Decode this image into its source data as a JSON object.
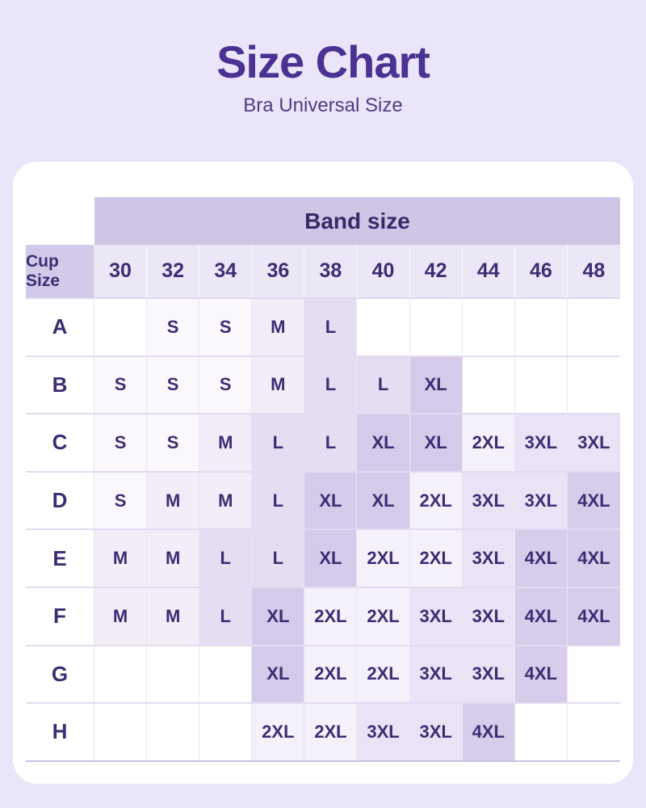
{
  "header": {
    "title": "Size Chart",
    "subtitle": "Bra Universal Size"
  },
  "colors": {
    "page_background": "#EAE5F8",
    "card_background": "#FFFFFF",
    "title_text": "#4A3192",
    "subtitle_text": "#4F3D86",
    "table_text": "#3D2C74",
    "band_header_bg": "#CFC5E5",
    "band_numbers_row_bg": "#ECE7F6",
    "cup_size_cell_bg": "#D3C9E8",
    "size_tints": {
      "S": "#FAF8FD",
      "M": "#F2EDF9",
      "L": "#E5DEF2",
      "XL": "#D5CAE9",
      "2XL": "#F5F1FB",
      "3XL": "#EAE3F5",
      "4XL": "#D7CCEA",
      "": "#FFFFFF"
    }
  },
  "chart_data": {
    "type": "table",
    "title": "Size Chart",
    "subtitle": "Bra Universal Size",
    "column_group_label": "Band size",
    "row_group_label": "Cup Size",
    "columns": [
      "30",
      "32",
      "34",
      "36",
      "38",
      "40",
      "42",
      "44",
      "46",
      "48"
    ],
    "rows": [
      "A",
      "B",
      "C",
      "D",
      "E",
      "F",
      "G",
      "H"
    ],
    "values": [
      [
        "",
        "S",
        "S",
        "M",
        "L",
        "",
        "",
        "",
        "",
        ""
      ],
      [
        "S",
        "S",
        "S",
        "M",
        "L",
        "L",
        "XL",
        "",
        "",
        ""
      ],
      [
        "S",
        "S",
        "M",
        "L",
        "L",
        "XL",
        "XL",
        "2XL",
        "3XL",
        "3XL"
      ],
      [
        "S",
        "M",
        "M",
        "L",
        "XL",
        "XL",
        "2XL",
        "3XL",
        "3XL",
        "4XL"
      ],
      [
        "M",
        "M",
        "L",
        "L",
        "XL",
        "2XL",
        "2XL",
        "3XL",
        "4XL",
        "4XL"
      ],
      [
        "M",
        "M",
        "L",
        "XL",
        "2XL",
        "2XL",
        "3XL",
        "3XL",
        "4XL",
        "4XL"
      ],
      [
        "",
        "",
        "",
        "XL",
        "2XL",
        "2XL",
        "3XL",
        "3XL",
        "4XL",
        ""
      ],
      [
        "",
        "",
        "",
        "2XL",
        "2XL",
        "3XL",
        "3XL",
        "4XL",
        "",
        ""
      ]
    ]
  }
}
